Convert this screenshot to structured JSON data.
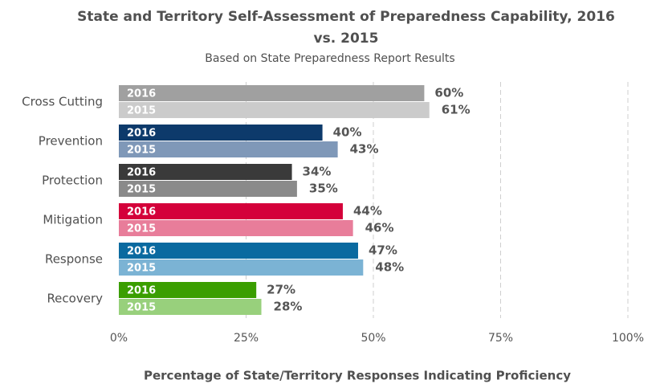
{
  "chart_data": {
    "type": "hbar",
    "title": "State and Territory Self-Assessment of Preparedness Capability, 2016 vs. 2015",
    "subtitle": "Based on State Preparedness Report Results",
    "x_label": "Percentage of State/Territory Responses Indicating Proficiency",
    "categories": [
      "Cross Cutting",
      "Prevention",
      "Protection",
      "Mitigation",
      "Response",
      "Recovery"
    ],
    "series": [
      {
        "name": "2016",
        "colors": [
          "#a0a0a0",
          "#0d3a6b",
          "#3a3a3a",
          "#d4003a",
          "#0a6aa0",
          "#3a9e00"
        ],
        "values": [
          60,
          40,
          34,
          44,
          47,
          27
        ],
        "value_labels": [
          "60%",
          "40%",
          "34%",
          "44%",
          "47%",
          "27%"
        ]
      },
      {
        "name": "2015",
        "colors": [
          "#cbcbcb",
          "#7f98b8",
          "#8a8a8a",
          "#e87d9a",
          "#7bb3d4",
          "#98d07c"
        ],
        "values": [
          61,
          43,
          35,
          46,
          48,
          28
        ],
        "value_labels": [
          "61%",
          "43%",
          "35%",
          "46%",
          "48%",
          "28%"
        ]
      }
    ],
    "xlim": [
      0,
      100
    ],
    "xticks": [
      {
        "value": 0,
        "label": "0%"
      },
      {
        "value": 25,
        "label": "25%"
      },
      {
        "value": 50,
        "label": "50%"
      },
      {
        "value": 75,
        "label": "75%"
      },
      {
        "value": 100,
        "label": "100%"
      }
    ],
    "grid": true
  }
}
